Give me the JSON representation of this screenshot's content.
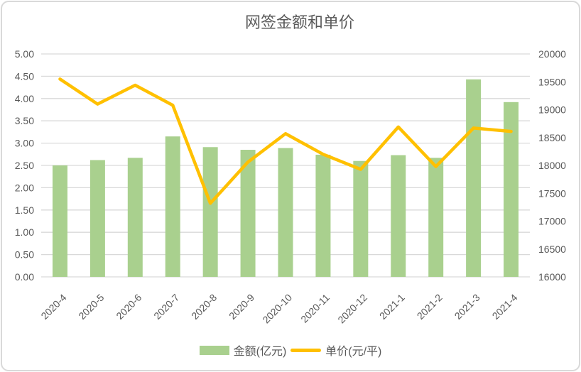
{
  "title": "网签金额和单价",
  "colors": {
    "bar": "#A9D08E",
    "line": "#FFC000",
    "text": "#595959",
    "grid": "#D9D9D9",
    "frame": "#D9D9D9",
    "background": "#FFFFFF"
  },
  "legend": {
    "items": [
      {
        "label": "金额(亿元)",
        "marker": "bar-swatch"
      },
      {
        "label": "单价(元/平)",
        "marker": "line-swatch"
      }
    ],
    "position": "bottom"
  },
  "chart_data": {
    "type": "bar",
    "subtype": "combo-bar-line-dual-axis",
    "title": "网签金额和单价",
    "categories": [
      "2020-4",
      "2020-5",
      "2020-6",
      "2020-7",
      "2020-8",
      "2020-9",
      "2020-10",
      "2020-11",
      "2020-12",
      "2021-1",
      "2021-2",
      "2021-3",
      "2021-4"
    ],
    "series": [
      {
        "name": "金额(亿元)",
        "type": "bar",
        "axis": "left",
        "values": [
          2.5,
          2.62,
          2.67,
          3.15,
          2.91,
          2.85,
          2.89,
          2.74,
          2.6,
          2.73,
          2.67,
          4.43,
          3.92
        ]
      },
      {
        "name": "单价(元/平)",
        "type": "line",
        "axis": "right",
        "values": [
          19550,
          19100,
          19440,
          19080,
          17320,
          18060,
          18570,
          18200,
          17930,
          18690,
          17980,
          18670,
          18610
        ]
      }
    ],
    "left_axis": {
      "min": 0,
      "max": 5,
      "step": 0.5,
      "tick_labels": [
        "0.00",
        "0.50",
        "1.00",
        "1.50",
        "2.00",
        "2.50",
        "3.00",
        "3.50",
        "4.00",
        "4.50",
        "5.00"
      ]
    },
    "right_axis": {
      "min": 16000,
      "max": 20000,
      "step": 500,
      "tick_labels": [
        "16000",
        "16500",
        "17000",
        "17500",
        "18000",
        "18500",
        "19000",
        "19500",
        "20000"
      ]
    },
    "grid": true,
    "x_label_rotation": -45,
    "legend_position": "bottom"
  }
}
